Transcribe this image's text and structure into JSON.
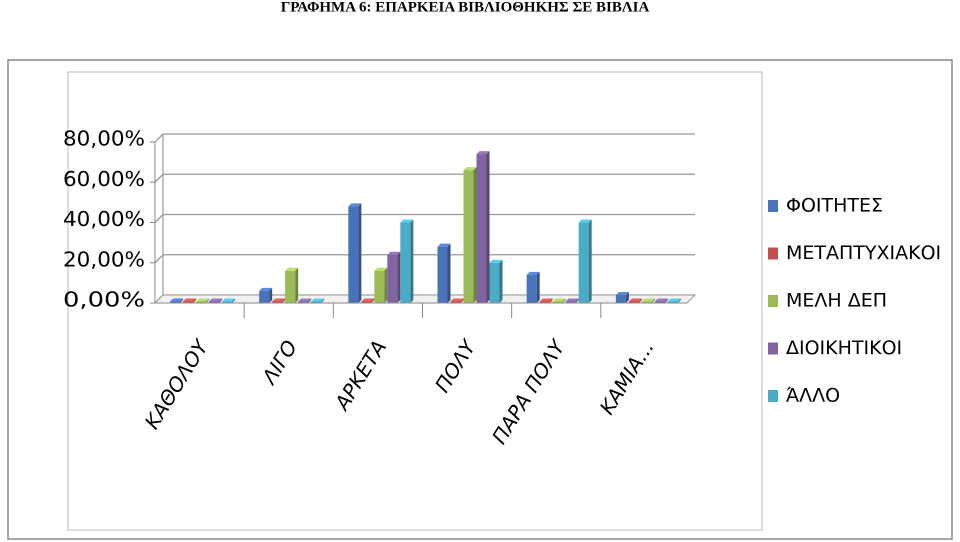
{
  "chart_data": {
    "type": "bar3d",
    "title": "ΓΡΑΦΗΜΑ 6: ΕΠΑΡΚΕΙΑ ΒΙΒΛΙΟΘΗΚΗΣ ΣΕ ΒΙΒΛΙΑ",
    "categories": [
      "ΚΑΘΟΛΟΥ",
      "ΛΙΓΟ",
      "ΑΡΚΕΤΑ",
      "ΠΟΛΥ",
      "ΠΑΡΑ ΠΟΛΥ",
      "ΚΑΜΙΑ..."
    ],
    "series": [
      {
        "name": "ΦΟΙΤΗΤΕΣ",
        "color": "#4a72b8",
        "values": [
          0,
          6,
          48,
          28,
          14,
          4
        ]
      },
      {
        "name": "ΜΕΤΑΠΤΥΧΙΑΚΟΙ",
        "color": "#c0504d",
        "values": [
          0,
          0,
          0,
          0,
          0,
          0
        ]
      },
      {
        "name": "ΜΕΛΗ ΔΕΠ",
        "color": "#9bbb59",
        "values": [
          0,
          16,
          16,
          66,
          0,
          0
        ]
      },
      {
        "name": "ΔΙΟΙΚΗΤΙΚΟΙ",
        "color": "#8064a2",
        "values": [
          0,
          0,
          24,
          74,
          0,
          0
        ]
      },
      {
        "name": "ΆΛΛΟ",
        "color": "#4bacc6",
        "values": [
          0,
          0,
          40,
          20,
          40,
          0
        ]
      }
    ],
    "ylim": [
      0,
      80
    ],
    "yticks": [
      {
        "value": 0,
        "label": "0,00%"
      },
      {
        "value": 20,
        "label": "20,00%"
      },
      {
        "value": 40,
        "label": "40,00%"
      },
      {
        "value": 60,
        "label": "60,00%"
      },
      {
        "value": 80,
        "label": "80,00%"
      }
    ],
    "grid": true,
    "legend": "right"
  }
}
